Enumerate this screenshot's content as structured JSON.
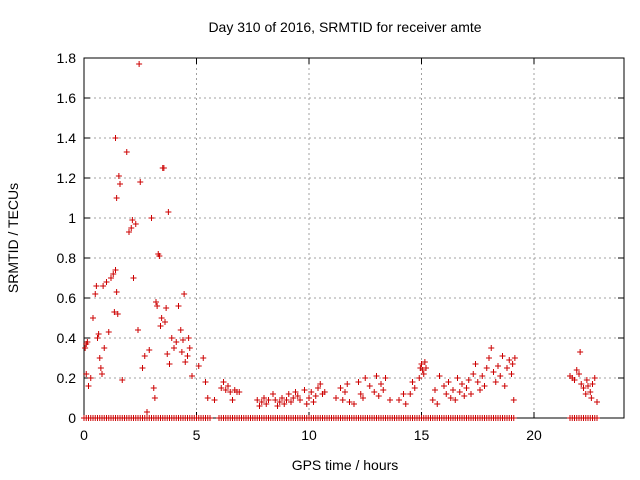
{
  "chart_data": {
    "type": "scatter",
    "title": "Day 310 of 2016, SRMTID for receiver amte",
    "xlabel": "GPS time / hours",
    "ylabel": "SRMTID / TECUs",
    "xlim": [
      0,
      24
    ],
    "ylim": [
      0,
      1.8
    ],
    "xticks": [
      "0",
      "5",
      "10",
      "15",
      "20"
    ],
    "xtick_values": [
      0,
      5,
      10,
      15,
      20
    ],
    "yticks": [
      "0",
      "0.2",
      "0.4",
      "0.6",
      "0.8",
      "1",
      "1.2",
      "1.4",
      "1.6",
      "1.8"
    ],
    "ytick_values": [
      0,
      0.2,
      0.4,
      0.6,
      0.8,
      1.0,
      1.2,
      1.4,
      1.6,
      1.8
    ],
    "grid": true,
    "marker": "+",
    "color": "#cc0000",
    "series": [
      {
        "name": "SRMTID",
        "points": [
          [
            0.05,
            0.35
          ],
          [
            0.1,
            0.37
          ],
          [
            0.15,
            0.38
          ],
          [
            0.1,
            0.22
          ],
          [
            0.2,
            0.16
          ],
          [
            0.3,
            0.2
          ],
          [
            0.4,
            0.5
          ],
          [
            0.5,
            0.62
          ],
          [
            0.55,
            0.66
          ],
          [
            0.6,
            0.4
          ],
          [
            0.65,
            0.42
          ],
          [
            0.7,
            0.3
          ],
          [
            0.75,
            0.25
          ],
          [
            0.8,
            0.22
          ],
          [
            0.85,
            0.66
          ],
          [
            0.9,
            0.35
          ],
          [
            1.0,
            0.68
          ],
          [
            1.1,
            0.43
          ],
          [
            1.2,
            0.7
          ],
          [
            1.3,
            0.72
          ],
          [
            1.35,
            0.53
          ],
          [
            1.4,
            0.74
          ],
          [
            1.45,
            0.63
          ],
          [
            1.5,
            0.52
          ],
          [
            1.55,
            1.21
          ],
          [
            1.6,
            1.17
          ],
          [
            1.45,
            1.1
          ],
          [
            1.4,
            1.4
          ],
          [
            1.7,
            0.19
          ],
          [
            1.9,
            1.33
          ],
          [
            2.0,
            0.93
          ],
          [
            2.1,
            0.95
          ],
          [
            2.15,
            0.99
          ],
          [
            2.2,
            0.7
          ],
          [
            2.3,
            0.97
          ],
          [
            2.4,
            0.44
          ],
          [
            2.45,
            1.77
          ],
          [
            2.5,
            1.18
          ],
          [
            2.6,
            0.25
          ],
          [
            2.7,
            0.31
          ],
          [
            2.8,
            0.03
          ],
          [
            2.9,
            0.34
          ],
          [
            3.0,
            1.0
          ],
          [
            3.1,
            0.15
          ],
          [
            3.15,
            0.1
          ],
          [
            3.2,
            0.58
          ],
          [
            3.25,
            0.56
          ],
          [
            3.3,
            0.82
          ],
          [
            3.35,
            0.81
          ],
          [
            3.4,
            0.46
          ],
          [
            3.45,
            0.5
          ],
          [
            3.5,
            1.25
          ],
          [
            3.55,
            1.25
          ],
          [
            3.6,
            0.48
          ],
          [
            3.65,
            0.55
          ],
          [
            3.7,
            0.32
          ],
          [
            3.75,
            1.03
          ],
          [
            3.8,
            0.27
          ],
          [
            3.9,
            0.4
          ],
          [
            4.0,
            0.35
          ],
          [
            4.1,
            0.38
          ],
          [
            4.2,
            0.56
          ],
          [
            4.3,
            0.44
          ],
          [
            4.35,
            0.33
          ],
          [
            4.4,
            0.39
          ],
          [
            4.45,
            0.62
          ],
          [
            4.5,
            0.28
          ],
          [
            4.6,
            0.31
          ],
          [
            4.65,
            0.4
          ],
          [
            4.7,
            0.35
          ],
          [
            4.8,
            0.21
          ],
          [
            5.1,
            0.26
          ],
          [
            5.3,
            0.3
          ],
          [
            5.4,
            0.18
          ],
          [
            5.5,
            0.1
          ],
          [
            5.8,
            0.09
          ],
          [
            6.1,
            0.15
          ],
          [
            6.2,
            0.18
          ],
          [
            6.3,
            0.14
          ],
          [
            6.4,
            0.16
          ],
          [
            6.5,
            0.13
          ],
          [
            6.6,
            0.09
          ],
          [
            6.7,
            0.14
          ],
          [
            6.8,
            0.13
          ],
          [
            6.9,
            0.13
          ],
          [
            7.7,
            0.09
          ],
          [
            7.8,
            0.06
          ],
          [
            7.9,
            0.08
          ],
          [
            8.0,
            0.1
          ],
          [
            8.1,
            0.07
          ],
          [
            8.2,
            0.09
          ],
          [
            8.4,
            0.12
          ],
          [
            8.5,
            0.09
          ],
          [
            8.6,
            0.06
          ],
          [
            8.7,
            0.08
          ],
          [
            8.8,
            0.1
          ],
          [
            8.9,
            0.07
          ],
          [
            9.0,
            0.09
          ],
          [
            9.1,
            0.12
          ],
          [
            9.2,
            0.08
          ],
          [
            9.3,
            0.1
          ],
          [
            9.4,
            0.13
          ],
          [
            9.5,
            0.11
          ],
          [
            9.6,
            0.09
          ],
          [
            9.8,
            0.14
          ],
          [
            9.9,
            0.07
          ],
          [
            10.0,
            0.1
          ],
          [
            10.1,
            0.13
          ],
          [
            10.2,
            0.08
          ],
          [
            10.3,
            0.11
          ],
          [
            10.4,
            0.15
          ],
          [
            10.5,
            0.17
          ],
          [
            10.6,
            0.12
          ],
          [
            10.7,
            0.13
          ],
          [
            11.2,
            0.1
          ],
          [
            11.4,
            0.15
          ],
          [
            11.5,
            0.09
          ],
          [
            11.6,
            0.13
          ],
          [
            11.7,
            0.17
          ],
          [
            11.8,
            0.08
          ],
          [
            12.0,
            0.07
          ],
          [
            12.2,
            0.18
          ],
          [
            12.3,
            0.12
          ],
          [
            12.4,
            0.1
          ],
          [
            12.5,
            0.2
          ],
          [
            12.7,
            0.16
          ],
          [
            12.9,
            0.13
          ],
          [
            13.0,
            0.21
          ],
          [
            13.1,
            0.11
          ],
          [
            13.2,
            0.17
          ],
          [
            13.3,
            0.14
          ],
          [
            13.4,
            0.2
          ],
          [
            13.6,
            0.09
          ],
          [
            14.0,
            0.09
          ],
          [
            14.2,
            0.12
          ],
          [
            14.3,
            0.07
          ],
          [
            14.5,
            0.12
          ],
          [
            14.6,
            0.18
          ],
          [
            14.7,
            0.15
          ],
          [
            14.9,
            0.2
          ],
          [
            14.95,
            0.25
          ],
          [
            15.0,
            0.27
          ],
          [
            15.05,
            0.24
          ],
          [
            15.1,
            0.22
          ],
          [
            15.15,
            0.28
          ],
          [
            15.2,
            0.25
          ],
          [
            15.5,
            0.09
          ],
          [
            15.6,
            0.14
          ],
          [
            15.7,
            0.07
          ],
          [
            15.8,
            0.21
          ],
          [
            16.0,
            0.16
          ],
          [
            16.1,
            0.12
          ],
          [
            16.2,
            0.18
          ],
          [
            16.3,
            0.1
          ],
          [
            16.4,
            0.14
          ],
          [
            16.5,
            0.09
          ],
          [
            16.6,
            0.2
          ],
          [
            16.7,
            0.13
          ],
          [
            16.8,
            0.17
          ],
          [
            16.9,
            0.11
          ],
          [
            17.0,
            0.15
          ],
          [
            17.1,
            0.19
          ],
          [
            17.2,
            0.12
          ],
          [
            17.3,
            0.22
          ],
          [
            17.4,
            0.27
          ],
          [
            17.5,
            0.18
          ],
          [
            17.6,
            0.14
          ],
          [
            17.7,
            0.21
          ],
          [
            17.8,
            0.16
          ],
          [
            17.9,
            0.25
          ],
          [
            18.0,
            0.3
          ],
          [
            18.1,
            0.35
          ],
          [
            18.2,
            0.23
          ],
          [
            18.3,
            0.18
          ],
          [
            18.4,
            0.26
          ],
          [
            18.5,
            0.21
          ],
          [
            18.6,
            0.31
          ],
          [
            18.7,
            0.16
          ],
          [
            18.8,
            0.25
          ],
          [
            18.9,
            0.29
          ],
          [
            19.0,
            0.22
          ],
          [
            19.05,
            0.27
          ],
          [
            19.1,
            0.09
          ],
          [
            19.15,
            0.3
          ],
          [
            21.6,
            0.21
          ],
          [
            21.7,
            0.2
          ],
          [
            21.8,
            0.19
          ],
          [
            21.9,
            0.24
          ],
          [
            22.0,
            0.22
          ],
          [
            22.05,
            0.33
          ],
          [
            22.1,
            0.17
          ],
          [
            22.2,
            0.15
          ],
          [
            22.3,
            0.12
          ],
          [
            22.35,
            0.19
          ],
          [
            22.4,
            0.16
          ],
          [
            22.5,
            0.13
          ],
          [
            22.55,
            0.1
          ],
          [
            22.6,
            0.17
          ],
          [
            22.7,
            0.2
          ],
          [
            22.8,
            0.08
          ]
        ]
      }
    ],
    "zero_band": [
      [
        0,
        5.6
      ],
      [
        6.0,
        19.2
      ],
      [
        21.6,
        22.9
      ]
    ]
  }
}
